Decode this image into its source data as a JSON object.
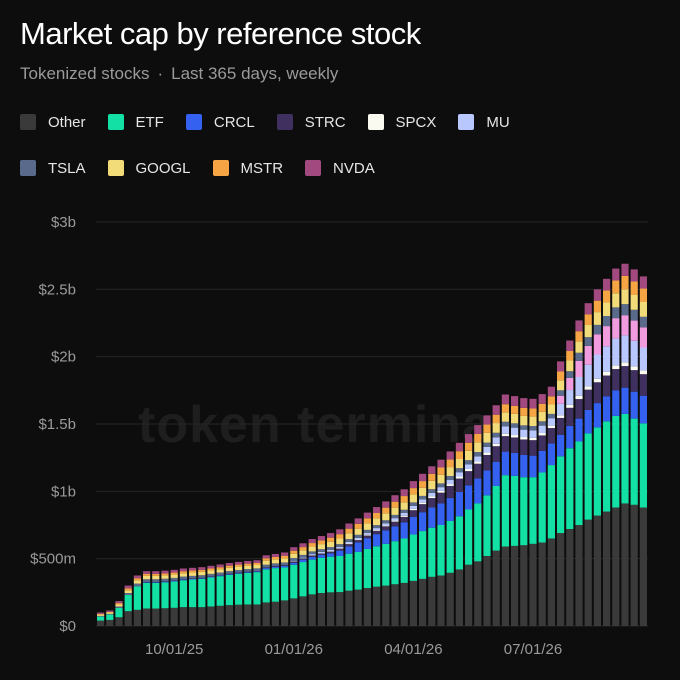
{
  "header": {
    "title": "Market cap by reference stock",
    "subtitle_left": "Tokenized stocks",
    "separator": "·",
    "subtitle_right": "Last 365 days, weekly"
  },
  "watermark": "token termina",
  "colors": {
    "background": "#0d0d0d",
    "grid": "#262626",
    "axis_text": "#9a9a9a"
  },
  "chart_data": {
    "type": "bar",
    "stacked": true,
    "title": "Market cap by reference stock",
    "subtitle": "Tokenized stocks · Last 365 days, weekly",
    "xlabel": "",
    "ylabel": "",
    "ylim": [
      0,
      3000000000
    ],
    "y_ticks": [
      0,
      500000000,
      1000000000,
      1500000000,
      2000000000,
      2500000000,
      3000000000
    ],
    "y_tick_labels": [
      "$0",
      "$500m",
      "$1b",
      "$1.5b",
      "$2b",
      "$2.5b",
      "$3b"
    ],
    "x_tick_labels": [
      {
        "label": "10/01/25",
        "bar_index": 8
      },
      {
        "label": "01/01/26",
        "bar_index": 21
      },
      {
        "label": "04/01/26",
        "bar_index": 34
      },
      {
        "label": "07/01/26",
        "bar_index": 47
      }
    ],
    "grid": true,
    "legend_position": "top-left",
    "series": [
      {
        "name": "Other",
        "color": "#3a3a3a",
        "values": [
          40,
          45,
          65,
          110,
          120,
          130,
          130,
          132,
          135,
          140,
          140,
          140,
          145,
          150,
          155,
          158,
          160,
          160,
          175,
          180,
          190,
          205,
          220,
          235,
          245,
          250,
          252,
          262,
          270,
          282,
          292,
          300,
          310,
          320,
          335,
          350,
          365,
          375,
          395,
          420,
          455,
          480,
          520,
          560,
          590,
          595,
          600,
          610,
          620,
          650,
          690,
          720,
          750,
          790,
          820,
          850,
          880,
          910,
          900,
          880
        ]
      },
      {
        "name": "ETF",
        "color": "#12e0a4",
        "values": [
          30,
          40,
          70,
          120,
          175,
          190,
          190,
          192,
          195,
          200,
          205,
          210,
          215,
          220,
          225,
          230,
          235,
          240,
          245,
          250,
          245,
          250,
          255,
          258,
          262,
          265,
          268,
          275,
          280,
          290,
          300,
          310,
          320,
          330,
          345,
          355,
          365,
          375,
          385,
          395,
          410,
          430,
          450,
          480,
          530,
          520,
          505,
          495,
          520,
          545,
          570,
          600,
          620,
          640,
          655,
          670,
          680,
          665,
          640,
          625
        ]
      },
      {
        "name": "CRCL",
        "color": "#3461ef",
        "values": [
          0,
          0,
          0,
          0,
          0,
          5,
          5,
          5,
          5,
          5,
          5,
          5,
          5,
          5,
          5,
          5,
          5,
          5,
          10,
          10,
          12,
          15,
          18,
          20,
          22,
          25,
          40,
          55,
          70,
          80,
          90,
          100,
          110,
          120,
          130,
          140,
          150,
          160,
          170,
          180,
          180,
          185,
          185,
          180,
          175,
          170,
          165,
          160,
          160,
          160,
          160,
          165,
          170,
          175,
          180,
          185,
          190,
          195,
          200,
          205
        ]
      },
      {
        "name": "STRC",
        "color": "#3f305f",
        "values": [
          0,
          0,
          0,
          0,
          0,
          2,
          2,
          2,
          2,
          2,
          2,
          2,
          2,
          2,
          3,
          3,
          3,
          3,
          5,
          5,
          5,
          8,
          8,
          10,
          10,
          12,
          14,
          16,
          18,
          20,
          25,
          30,
          35,
          40,
          50,
          60,
          70,
          80,
          90,
          100,
          105,
          110,
          115,
          115,
          115,
          115,
          115,
          115,
          115,
          115,
          125,
          135,
          145,
          150,
          155,
          155,
          158,
          160,
          160,
          160
        ]
      },
      {
        "name": "SPCX",
        "color": "#fafaf0",
        "values": [
          0,
          0,
          0,
          0,
          0,
          0,
          0,
          0,
          0,
          0,
          0,
          0,
          0,
          0,
          0,
          0,
          0,
          0,
          0,
          0,
          0,
          2,
          2,
          3,
          3,
          4,
          4,
          5,
          5,
          6,
          6,
          7,
          8,
          9,
          10,
          11,
          12,
          13,
          14,
          15,
          16,
          17,
          18,
          18,
          18,
          18,
          18,
          18,
          18,
          18,
          20,
          22,
          24,
          25,
          26,
          27,
          28,
          28,
          28,
          28
        ]
      },
      {
        "name": "MU",
        "color": "#b8c8ff",
        "values": [
          0,
          0,
          0,
          0,
          0,
          0,
          0,
          0,
          0,
          0,
          0,
          0,
          0,
          0,
          0,
          0,
          0,
          0,
          0,
          0,
          0,
          5,
          5,
          8,
          8,
          10,
          10,
          12,
          12,
          14,
          14,
          16,
          18,
          20,
          22,
          24,
          26,
          28,
          30,
          32,
          35,
          38,
          42,
          48,
          55,
          55,
          55,
          55,
          55,
          55,
          85,
          110,
          140,
          160,
          180,
          190,
          200,
          200,
          190,
          170
        ]
      },
      {
        "name": "TSLA",
        "color": "#5a6a8a",
        "values": [
          5,
          5,
          10,
          15,
          20,
          20,
          20,
          20,
          20,
          20,
          20,
          20,
          20,
          20,
          20,
          20,
          20,
          20,
          20,
          20,
          20,
          20,
          20,
          20,
          20,
          20,
          20,
          20,
          22,
          22,
          22,
          22,
          24,
          24,
          26,
          26,
          28,
          28,
          30,
          30,
          30,
          32,
          32,
          34,
          34,
          32,
          32,
          32,
          32,
          32,
          40,
          50,
          60,
          65,
          70,
          75,
          80,
          82,
          80,
          78
        ]
      },
      {
        "name": "GOOGL",
        "color": "#f2dc7a",
        "values": [
          10,
          10,
          15,
          20,
          25,
          25,
          25,
          25,
          25,
          25,
          25,
          25,
          25,
          25,
          25,
          25,
          25,
          25,
          30,
          30,
          30,
          32,
          34,
          36,
          38,
          40,
          42,
          44,
          46,
          48,
          50,
          52,
          54,
          56,
          58,
          60,
          62,
          64,
          66,
          68,
          70,
          72,
          72,
          72,
          70,
          70,
          70,
          70,
          70,
          70,
          75,
          80,
          85,
          90,
          95,
          100,
          105,
          110,
          110,
          110
        ]
      },
      {
        "name": "MSTR",
        "color": "#f5a544",
        "values": [
          5,
          5,
          10,
          15,
          15,
          15,
          15,
          15,
          15,
          15,
          15,
          15,
          15,
          15,
          15,
          15,
          15,
          15,
          18,
          18,
          20,
          22,
          24,
          26,
          28,
          30,
          32,
          34,
          36,
          38,
          40,
          42,
          44,
          46,
          48,
          50,
          52,
          54,
          56,
          58,
          60,
          62,
          62,
          62,
          60,
          60,
          60,
          60,
          60,
          60,
          65,
          70,
          75,
          80,
          85,
          90,
          95,
          100,
          100,
          100
        ]
      },
      {
        "name": "NVDA",
        "color": "#a24a80",
        "values": [
          10,
          10,
          15,
          20,
          20,
          20,
          20,
          20,
          20,
          20,
          20,
          20,
          20,
          20,
          20,
          20,
          20,
          20,
          22,
          22,
          24,
          26,
          28,
          30,
          32,
          34,
          36,
          38,
          40,
          42,
          44,
          46,
          48,
          50,
          52,
          54,
          56,
          58,
          60,
          62,
          64,
          66,
          68,
          70,
          72,
          72,
          72,
          72,
          72,
          72,
          75,
          78,
          80,
          82,
          84,
          86,
          88,
          90,
          90,
          90
        ]
      }
    ],
    "unit_scale": 1000000,
    "units": "USD",
    "extra_series": [
      {
        "name": "",
        "color": "#f29ce0",
        "note": "pink band visible near top of stacks",
        "values": [
          0,
          0,
          0,
          0,
          0,
          0,
          0,
          0,
          0,
          0,
          0,
          0,
          0,
          0,
          0,
          0,
          0,
          0,
          0,
          0,
          0,
          0,
          0,
          0,
          0,
          0,
          0,
          0,
          0,
          0,
          0,
          0,
          0,
          0,
          0,
          0,
          0,
          0,
          0,
          0,
          0,
          0,
          0,
          0,
          0,
          0,
          0,
          0,
          0,
          0,
          60,
          90,
          120,
          140,
          150,
          150,
          150,
          150,
          150,
          150
        ]
      }
    ]
  }
}
